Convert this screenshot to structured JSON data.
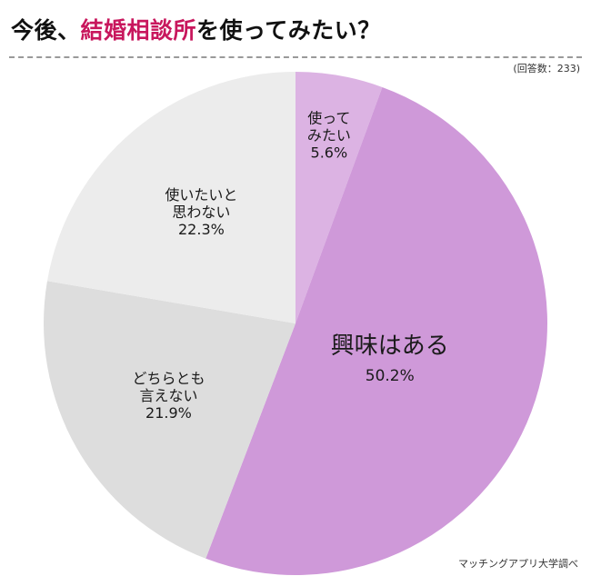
{
  "title": {
    "prefix": "今後、",
    "highlight": "結婚相談所",
    "suffix": "を使ってみたい？"
  },
  "respondents": "(回答数：233)",
  "source": "マッチングアプリ大学調べ",
  "colors": {
    "title_highlight": "#c8175d"
  },
  "chart_data": {
    "type": "pie",
    "slices": [
      {
        "label_lines": [
          "使って",
          "みたい"
        ],
        "value_label": "5.6%",
        "value": 5.6,
        "color": "#dcb3e3"
      },
      {
        "label_lines": [
          "興味はある"
        ],
        "value_label": "50.2%",
        "value": 50.2,
        "color": "#cf99d9"
      },
      {
        "label_lines": [
          "どちらとも",
          "言えない"
        ],
        "value_label": "21.9%",
        "value": 21.9,
        "color": "#dddddd"
      },
      {
        "label_lines": [
          "使いたいと",
          "思わない"
        ],
        "value_label": "22.3%",
        "value": 22.3,
        "color": "#ececec"
      }
    ]
  }
}
